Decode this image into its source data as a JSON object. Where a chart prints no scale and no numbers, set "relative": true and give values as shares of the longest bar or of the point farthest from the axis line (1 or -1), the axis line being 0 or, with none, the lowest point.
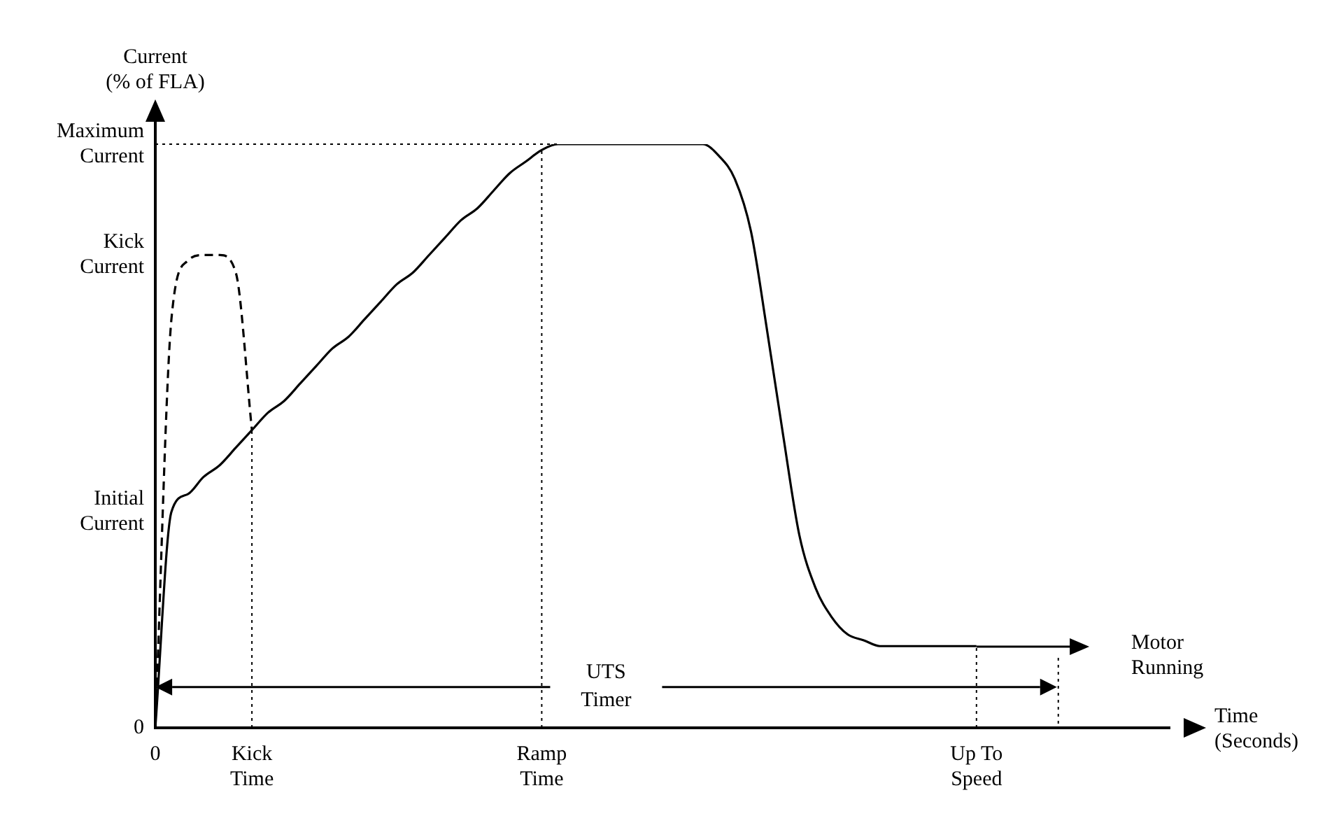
{
  "chart_data": {
    "type": "line",
    "relative": true,
    "xlabel": "Time (Seconds)",
    "ylabel": "Current (% of FLA)",
    "categories": [
      "0",
      null,
      null,
      null,
      null,
      null,
      "Kick Time",
      null,
      null,
      null,
      null,
      null,
      null,
      null,
      null,
      null,
      null,
      null,
      null,
      null,
      null,
      null,
      null,
      null,
      "Ramp Time",
      null,
      null,
      null,
      null,
      null,
      null,
      null,
      null,
      null,
      null,
      null,
      null,
      null,
      null,
      null,
      null,
      null,
      null,
      null,
      null,
      null,
      null,
      null,
      null,
      null,
      null,
      "Up To Speed",
      null,
      null,
      null,
      null,
      null,
      null,
      null,
      null,
      null,
      null,
      null,
      null
    ],
    "series": [
      {
        "color": "#000000",
        "line_style": "solid",
        "values": [
          0,
          0.37,
          0.4,
          0.43,
          0.45,
          0.48,
          0.51,
          0.54,
          0.56,
          0.59,
          0.62,
          0.65,
          0.67,
          0.7,
          0.73,
          0.76,
          0.78,
          0.81,
          0.84,
          0.87,
          0.89,
          0.92,
          0.95,
          0.97,
          0.99,
          1,
          1,
          1,
          1,
          1,
          1,
          1,
          1,
          1,
          1,
          0.98,
          0.94,
          0.85,
          0.68,
          0.5,
          0.33,
          0.24,
          0.19,
          0.16,
          0.15,
          0.14,
          0.14,
          0.14,
          0.14,
          0.14,
          0.14,
          0.14,
          null,
          null,
          null,
          null,
          null,
          null,
          null,
          null,
          null,
          null,
          null,
          null
        ]
      },
      {
        "color": "#000000",
        "line_style": "dashed",
        "values": [
          0,
          0.7,
          0.8,
          0.81,
          0.81,
          0.78,
          0.51,
          null,
          null,
          null,
          null,
          null,
          null,
          null,
          null,
          null,
          null,
          null,
          null,
          null,
          null,
          null,
          null,
          null,
          null,
          null,
          null,
          null,
          null,
          null,
          null,
          null,
          null,
          null,
          null,
          null,
          null,
          null,
          null,
          null,
          null,
          null,
          null,
          null,
          null,
          null,
          null,
          null,
          null,
          null,
          null,
          null,
          null,
          null,
          null,
          null,
          null,
          null,
          null,
          null,
          null,
          null,
          null,
          null
        ]
      }
    ],
    "marker": "none",
    "grid": false,
    "legend": false,
    "ref_lines": [
      {
        "axis": "y",
        "value": 1,
        "line_style": "dotted"
      },
      {
        "axis": "x",
        "value": "Kick Time",
        "line_style": "dotted"
      },
      {
        "axis": "x",
        "value": "Ramp Time",
        "line_style": "dotted"
      },
      {
        "axis": "x",
        "value": "Up To Speed",
        "line_style": "dotted"
      }
    ],
    "annotations": [
      "Maximum Current",
      "Kick Current",
      "Initial Current",
      "0",
      "UTS Timer",
      "Motor Running"
    ]
  }
}
